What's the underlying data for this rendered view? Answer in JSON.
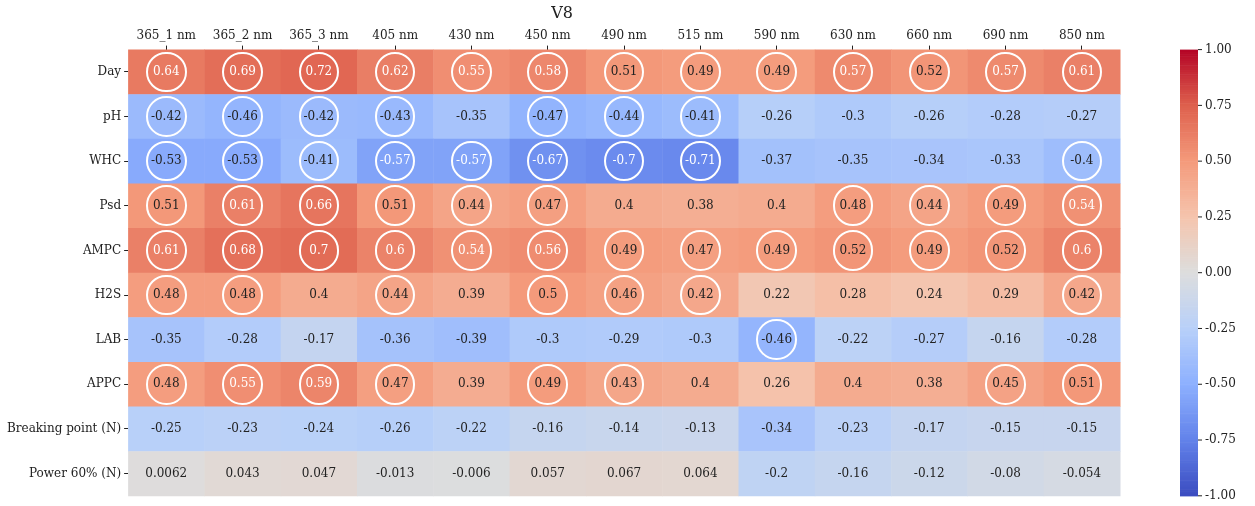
{
  "chart_data": {
    "type": "heatmap",
    "title": "V8",
    "categories": [
      "365_1 nm",
      "365_2 nm",
      "365_3 nm",
      "405 nm",
      "430 nm",
      "450 nm",
      "490 nm",
      "515 nm",
      "590 nm",
      "630 nm",
      "660 nm",
      "690 nm",
      "850 nm"
    ],
    "y_categories": [
      "Day",
      "pH",
      "WHC",
      "Psd",
      "AMPC",
      "H2S",
      "LAB",
      "APPC",
      "Breaking point (N)",
      "Power 60% (N)"
    ],
    "cells": [
      [
        0.64,
        0.69,
        0.72,
        0.62,
        0.55,
        0.58,
        0.51,
        0.49,
        0.49,
        0.57,
        0.52,
        0.57,
        0.61
      ],
      [
        -0.42,
        -0.46,
        -0.42,
        -0.43,
        -0.35,
        -0.47,
        -0.44,
        -0.41,
        -0.26,
        -0.3,
        -0.26,
        -0.28,
        -0.27
      ],
      [
        -0.53,
        -0.53,
        -0.41,
        -0.57,
        -0.57,
        -0.67,
        -0.7,
        -0.71,
        -0.37,
        -0.35,
        -0.34,
        -0.33,
        -0.4
      ],
      [
        0.51,
        0.61,
        0.66,
        0.51,
        0.44,
        0.47,
        0.4,
        0.38,
        0.4,
        0.48,
        0.44,
        0.49,
        0.54
      ],
      [
        0.61,
        0.68,
        0.7,
        0.6,
        0.54,
        0.56,
        0.49,
        0.47,
        0.49,
        0.52,
        0.49,
        0.52,
        0.6
      ],
      [
        0.48,
        0.48,
        0.4,
        0.44,
        0.39,
        0.5,
        0.46,
        0.42,
        0.22,
        0.28,
        0.24,
        0.29,
        0.42
      ],
      [
        -0.35,
        -0.28,
        -0.17,
        -0.36,
        -0.39,
        -0.3,
        -0.29,
        -0.3,
        -0.46,
        -0.22,
        -0.27,
        -0.16,
        -0.28
      ],
      [
        0.48,
        0.55,
        0.59,
        0.47,
        0.39,
        0.49,
        0.43,
        0.4,
        0.26,
        0.4,
        0.38,
        0.45,
        0.51
      ],
      [
        -0.25,
        -0.23,
        -0.24,
        -0.26,
        -0.22,
        -0.16,
        -0.14,
        -0.13,
        -0.34,
        -0.23,
        -0.17,
        -0.15,
        -0.15
      ],
      [
        0.0062,
        0.043,
        0.047,
        -0.013,
        -0.006,
        0.057,
        0.067,
        0.064,
        -0.2,
        -0.16,
        -0.12,
        -0.08,
        -0.054
      ]
    ],
    "data_labels": true,
    "clim": [
      -1,
      1
    ],
    "cticks": [
      {
        "value": -1,
        "label": "-1.00"
      },
      {
        "value": -0.75,
        "label": "-0.75"
      },
      {
        "value": -0.5,
        "label": "-0.50"
      },
      {
        "value": -0.25,
        "label": "-0.25"
      },
      {
        "value": 0,
        "label": "0.00"
      },
      {
        "value": 0.25,
        "label": "0.25"
      },
      {
        "value": 0.5,
        "label": "0.50"
      },
      {
        "value": 0.75,
        "label": "0.75"
      },
      {
        "value": 1,
        "label": "1.00"
      }
    ]
  }
}
